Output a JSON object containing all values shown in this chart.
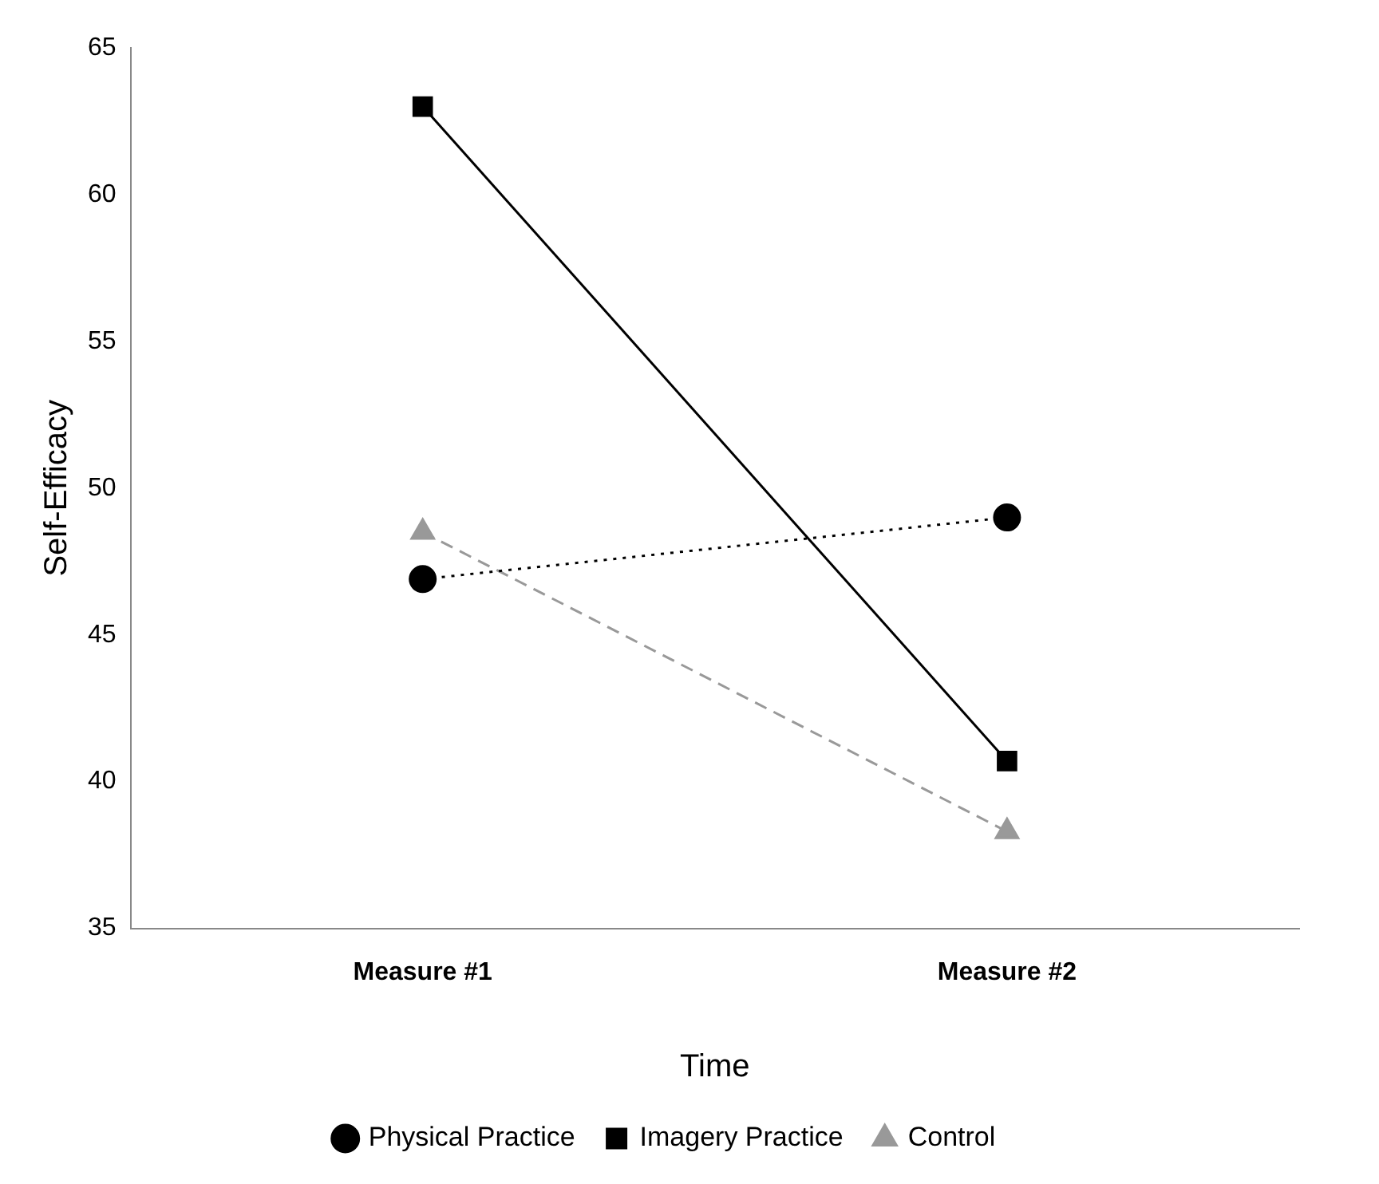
{
  "chart_data": {
    "type": "line",
    "xlabel": "Time",
    "ylabel": "Self-Efficacy",
    "categories": [
      "Measure #1",
      "Measure #2"
    ],
    "series": [
      {
        "name": "Physical Practice",
        "color": "#000000",
        "values": [
          46.9,
          49.0
        ],
        "marker": "circle",
        "line_style": "dotted"
      },
      {
        "name": "Imagery Practice",
        "color": "#000000",
        "values": [
          63.0,
          40.7
        ],
        "marker": "square",
        "line_style": "solid"
      },
      {
        "name": "Control",
        "color": "#999999",
        "values": [
          48.5,
          38.3
        ],
        "marker": "triangle",
        "line_style": "dashed"
      }
    ],
    "ylim": [
      35,
      65
    ],
    "yticks": [
      35,
      40,
      45,
      50,
      55,
      60,
      65
    ],
    "grid": false,
    "legend": "bottom"
  }
}
